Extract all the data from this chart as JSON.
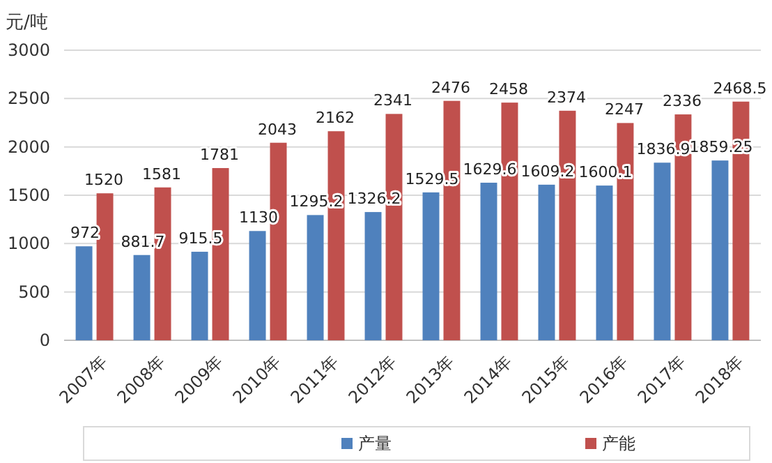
{
  "chart_data": {
    "type": "bar",
    "ylabel": "元/吨",
    "categories": [
      "2007年",
      "2008年",
      "2009年",
      "2010年",
      "2011年",
      "2012年",
      "2013年",
      "2014年",
      "2015年",
      "2016年",
      "2017年",
      "2018年"
    ],
    "series": [
      {
        "name": "产量",
        "color": "#4f81bd",
        "values": [
          972,
          881.7,
          915.5,
          1130,
          1295.2,
          1326.2,
          1529.5,
          1629.6,
          1609.2,
          1600.1,
          1836.9,
          1859.25
        ]
      },
      {
        "name": "产能",
        "color": "#c0504d",
        "values": [
          1520,
          1581,
          1781,
          2043,
          2162,
          2341,
          2476,
          2458,
          2374,
          2247,
          2336,
          2468.5
        ]
      }
    ],
    "ylim": [
      0,
      3000
    ],
    "yticks": [
      0,
      500,
      1000,
      1500,
      2000,
      2500,
      3000
    ],
    "grid": "y",
    "legend": "bottom",
    "data_labels": true
  }
}
